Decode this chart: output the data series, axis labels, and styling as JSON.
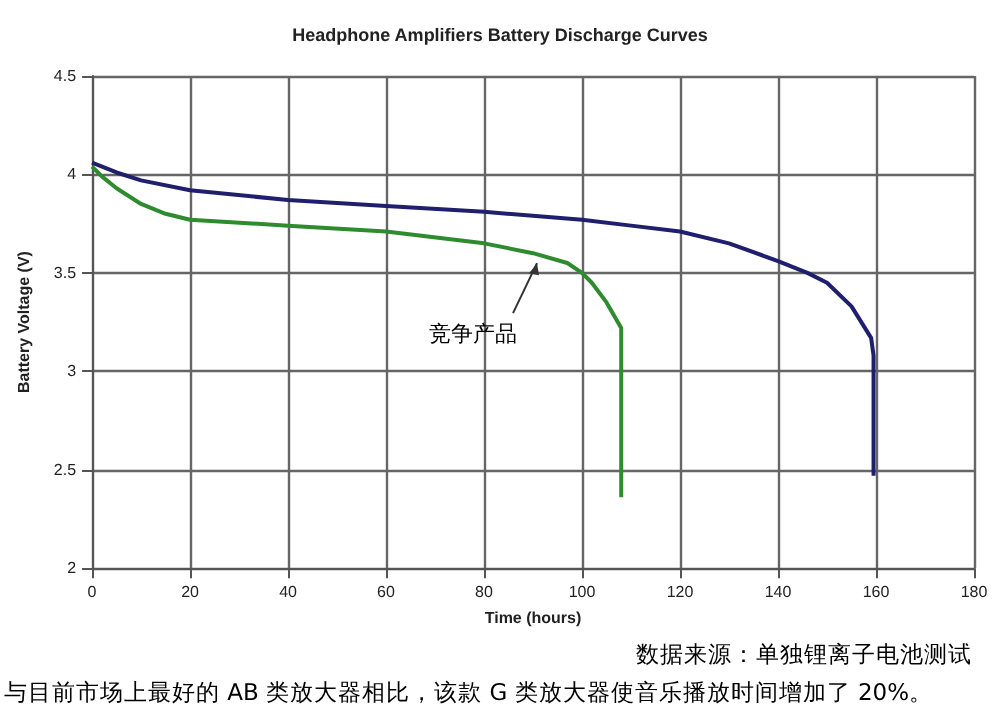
{
  "chart_data": {
    "type": "line",
    "title": "Headphone Amplifiers Battery Discharge Curves",
    "xlabel": "Time (hours)",
    "ylabel": "Battery Voltage (V)",
    "xlim": [
      0,
      180
    ],
    "xticks": [
      0,
      20,
      40,
      60,
      80,
      100,
      120,
      140,
      160,
      180
    ],
    "ylim": [
      2,
      4.5
    ],
    "yticks": [
      2,
      2.5,
      3,
      3.5,
      4,
      4.5
    ],
    "grid": true,
    "legend": false,
    "marker": "none",
    "line_style": "solid",
    "series": [
      {
        "color": "#1f1f6e",
        "x": [
          0,
          5,
          10,
          20,
          40,
          60,
          80,
          100,
          110,
          120,
          130,
          140,
          146,
          150,
          155,
          159,
          159.5,
          159.5
        ],
        "values": [
          4.06,
          4.01,
          3.97,
          3.92,
          3.87,
          3.84,
          3.81,
          3.77,
          3.74,
          3.71,
          3.65,
          3.56,
          3.5,
          3.45,
          3.33,
          3.17,
          3.08,
          2.47
        ]
      },
      {
        "name": "竞争产品",
        "color": "#2e8b2e",
        "x": [
          0,
          2,
          5,
          10,
          15,
          20,
          40,
          60,
          80,
          90,
          97,
          100,
          102,
          105,
          108,
          108
        ],
        "values": [
          4.04,
          3.99,
          3.93,
          3.85,
          3.8,
          3.77,
          3.74,
          3.71,
          3.65,
          3.6,
          3.55,
          3.5,
          3.45,
          3.35,
          3.22,
          2.36
        ]
      }
    ],
    "annotations": [
      "数据来源：单独锂离子电池测试",
      "与目前市场上最好的 AB 类放大器相比，该款 G 类放大器使音乐播放时间增加了 20%。"
    ]
  }
}
